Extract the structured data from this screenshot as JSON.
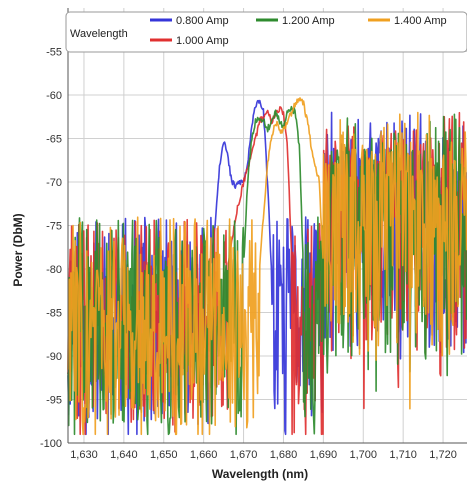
{
  "chart_data": {
    "type": "line",
    "title": "",
    "xlabel": "Wavelength (nm)",
    "ylabel": "Power (DbM)",
    "xlim": [
      1626,
      1726
    ],
    "ylim": [
      -100,
      -50
    ],
    "xticks": [
      1630,
      1640,
      1650,
      1660,
      1670,
      1680,
      1690,
      1700,
      1710,
      1720
    ],
    "xtick_labels": [
      "1,630",
      "1,640",
      "1,650",
      "1,660",
      "1,670",
      "1,680",
      "1,690",
      "1,700",
      "1,710",
      "1,720"
    ],
    "yticks": [
      -100,
      -95,
      -90,
      -85,
      -80,
      -75,
      -70,
      -65,
      -60,
      -55
    ],
    "ytick_labels": [
      "-100",
      "-95",
      "-90",
      "-85",
      "-80",
      "-75",
      "-70",
      "-65",
      "-60",
      "-55"
    ],
    "grid": true,
    "legend": {
      "title": "Wavelength",
      "placement": "top"
    },
    "series": [
      {
        "name": "0.800 Amp",
        "color": "#3535d9",
        "peak_points": [
          [
            1662,
            -79
          ],
          [
            1663,
            -74
          ],
          [
            1664,
            -68
          ],
          [
            1665,
            -65
          ],
          [
            1666,
            -67
          ],
          [
            1667,
            -70
          ],
          [
            1668,
            -70.5
          ],
          [
            1669,
            -70
          ],
          [
            1670,
            -70
          ],
          [
            1671,
            -68
          ],
          [
            1672,
            -64
          ],
          [
            1673,
            -61
          ],
          [
            1674,
            -60.5
          ],
          [
            1675,
            -62
          ],
          [
            1676,
            -70
          ],
          [
            1677,
            -80
          ]
        ]
      },
      {
        "name": "1.000 Amp",
        "color": "#e03030",
        "peak_points": [
          [
            1666,
            -80
          ],
          [
            1668,
            -74
          ],
          [
            1670,
            -70
          ],
          [
            1672,
            -67
          ],
          [
            1674,
            -63
          ],
          [
            1676,
            -62
          ],
          [
            1677,
            -63
          ],
          [
            1678,
            -62
          ],
          [
            1679,
            -61.5
          ],
          [
            1680,
            -62
          ],
          [
            1681,
            -66
          ],
          [
            1682,
            -78
          ]
        ]
      },
      {
        "name": "1.200 Amp",
        "color": "#2e8b2e",
        "peak_points": [
          [
            1670,
            -80
          ],
          [
            1671,
            -70
          ],
          [
            1672,
            -65
          ],
          [
            1673,
            -63
          ],
          [
            1674,
            -62.5
          ],
          [
            1675,
            -63
          ],
          [
            1676,
            -64
          ],
          [
            1677,
            -63
          ],
          [
            1678,
            -62
          ],
          [
            1679,
            -63
          ],
          [
            1680,
            -64
          ],
          [
            1681,
            -62
          ],
          [
            1682,
            -61.5
          ],
          [
            1683,
            -62
          ],
          [
            1684,
            -66
          ],
          [
            1685,
            -80
          ]
        ]
      },
      {
        "name": "1.400 Amp",
        "color": "#f0a020",
        "peak_points": [
          [
            1674,
            -80
          ],
          [
            1675,
            -74
          ],
          [
            1676,
            -68
          ],
          [
            1677,
            -65
          ],
          [
            1678,
            -63
          ],
          [
            1679,
            -64
          ],
          [
            1680,
            -64
          ],
          [
            1681,
            -63
          ],
          [
            1682,
            -62
          ],
          [
            1683,
            -61
          ],
          [
            1684,
            -60.5
          ],
          [
            1685,
            -61
          ],
          [
            1686,
            -63
          ],
          [
            1687,
            -66
          ],
          [
            1688,
            -68
          ],
          [
            1689,
            -70
          ],
          [
            1690,
            -80
          ]
        ]
      }
    ]
  }
}
